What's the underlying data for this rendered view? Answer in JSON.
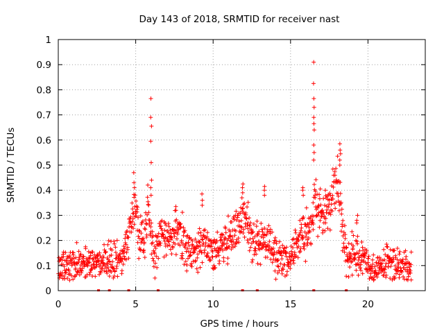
{
  "chart_data": {
    "type": "scatter",
    "title": "Day 143 of 2018, SRMTID for receiver nast",
    "xlabel": "GPS time / hours",
    "ylabel": "SRMTID / TECUs",
    "xlim": [
      0,
      23.7
    ],
    "ylim": [
      0,
      1
    ],
    "x_ticks": [
      0,
      5,
      10,
      15,
      20
    ],
    "x_tick_labels": [
      "0",
      "5",
      "10",
      "15",
      "20"
    ],
    "y_ticks": [
      0,
      0.1,
      0.2,
      0.3,
      0.4,
      0.5,
      0.6,
      0.7,
      0.8,
      0.9,
      1
    ],
    "y_tick_labels": [
      "0",
      "0.1",
      "0.2",
      "0.3",
      "0.4",
      "0.5",
      "0.6",
      "0.7",
      "0.8",
      "0.9",
      "1"
    ],
    "grid": true,
    "marker": "+",
    "series_color": "#ff0000",
    "trend": {
      "x": [
        0,
        0.5,
        1,
        1.5,
        2,
        2.5,
        3,
        3.5,
        4,
        4.2,
        4.5,
        4.8,
        5,
        5.2,
        5.5,
        5.8,
        6,
        6.2,
        6.5,
        7,
        7.5,
        8,
        8.5,
        9,
        9.5,
        10,
        10.5,
        11,
        11.5,
        12,
        12.5,
        13,
        13.5,
        14,
        14.5,
        15,
        15.5,
        16,
        16.3,
        16.6,
        17,
        17.5,
        18,
        18.3,
        18.6,
        19,
        19.5,
        20,
        20.5,
        21,
        21.5,
        22,
        22.8
      ],
      "y": [
        0.09,
        0.1,
        0.11,
        0.11,
        0.11,
        0.11,
        0.12,
        0.11,
        0.12,
        0.15,
        0.2,
        0.28,
        0.35,
        0.22,
        0.2,
        0.33,
        0.2,
        0.13,
        0.2,
        0.22,
        0.23,
        0.2,
        0.15,
        0.16,
        0.2,
        0.14,
        0.17,
        0.22,
        0.24,
        0.28,
        0.2,
        0.2,
        0.2,
        0.14,
        0.12,
        0.11,
        0.2,
        0.22,
        0.25,
        0.35,
        0.3,
        0.35,
        0.42,
        0.3,
        0.12,
        0.14,
        0.13,
        0.1,
        0.08,
        0.1,
        0.11,
        0.1,
        0.09
      ],
      "spread": 0.045,
      "point_count": 1300
    },
    "spikes": [
      {
        "x": 6.0,
        "values": [
          0.765,
          0.69,
          0.655,
          0.595,
          0.51,
          0.44,
          0.41,
          0.38
        ]
      },
      {
        "x": 16.5,
        "values": [
          0.91,
          0.825,
          0.765,
          0.73,
          0.69,
          0.665,
          0.64,
          0.58,
          0.55,
          0.52
        ]
      },
      {
        "x": 18.2,
        "values": [
          0.585,
          0.56,
          0.545,
          0.52,
          0.5
        ]
      },
      {
        "x": 4.9,
        "values": [
          0.47,
          0.43,
          0.41
        ]
      },
      {
        "x": 15.8,
        "values": [
          0.41,
          0.4,
          0.38
        ]
      },
      {
        "x": 11.9,
        "values": [
          0.425,
          0.41,
          0.39
        ]
      },
      {
        "x": 13.3,
        "values": [
          0.415,
          0.4,
          0.38
        ]
      },
      {
        "x": 9.3,
        "values": [
          0.385,
          0.36,
          0.34
        ]
      },
      {
        "x": 7.6,
        "values": [
          0.335,
          0.32
        ]
      },
      {
        "x": 19.3,
        "values": [
          0.3,
          0.28,
          0.27
        ]
      }
    ],
    "floor_markers": [
      2.6,
      3.3,
      4.55,
      6.45,
      11.9,
      12.85,
      16.5,
      18.6
    ]
  }
}
